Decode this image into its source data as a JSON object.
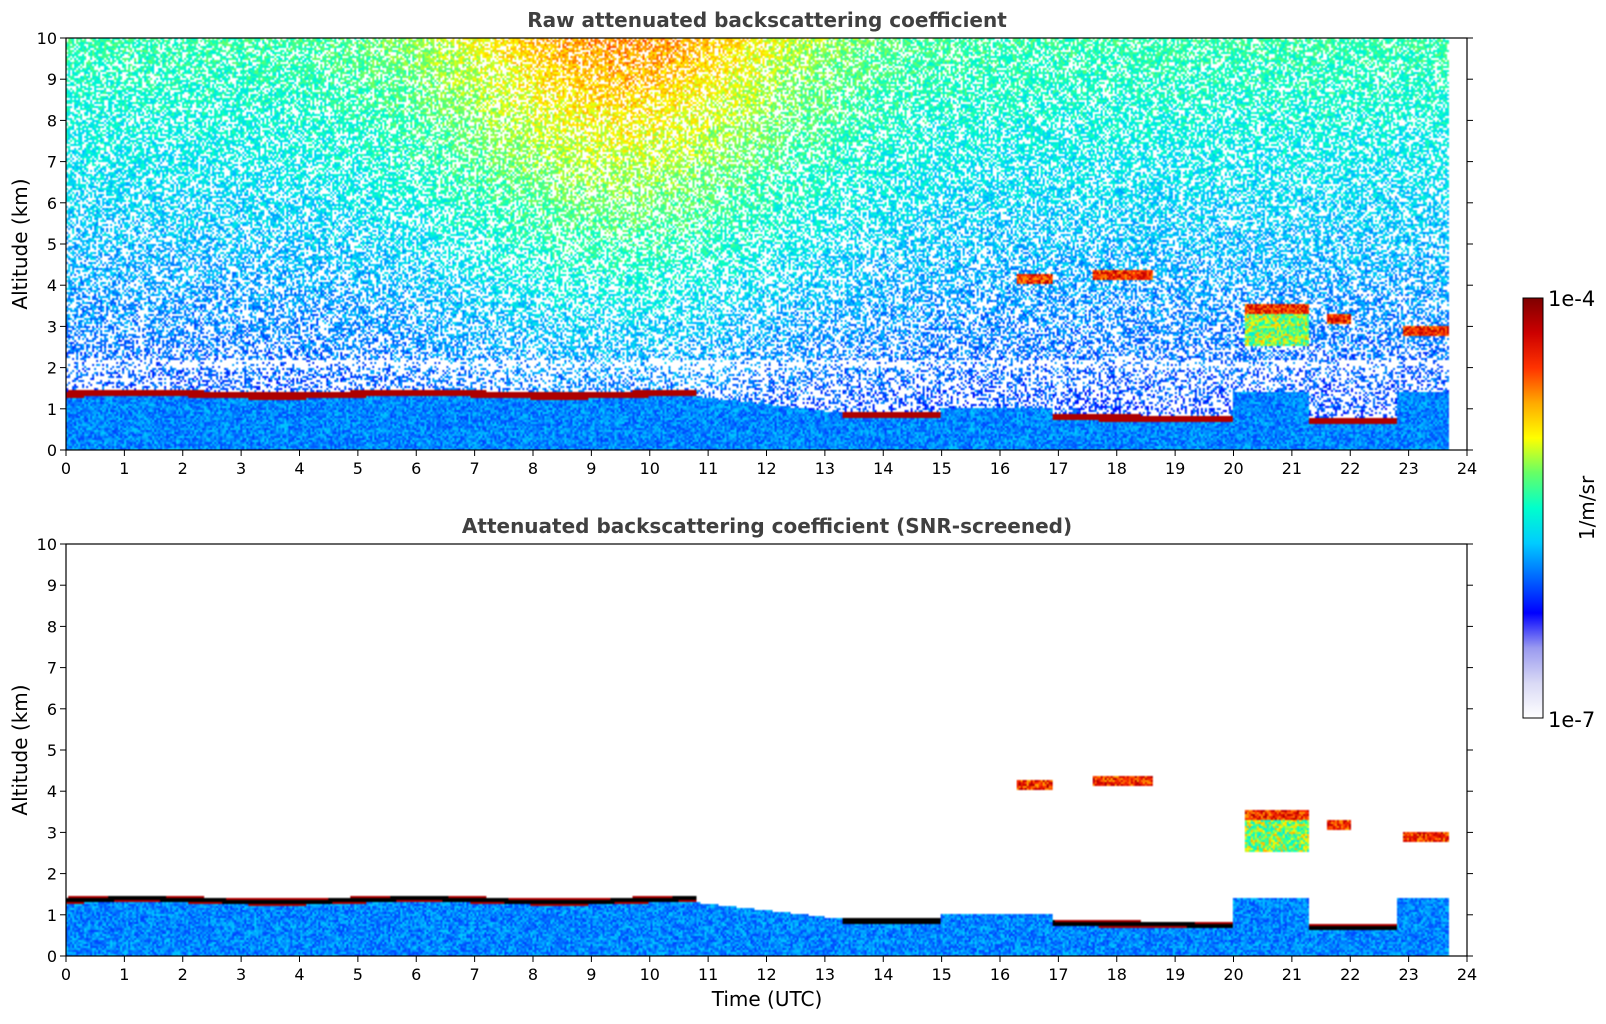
{
  "colormap": {
    "stops": [
      "#ffffff",
      "#d9d9f5",
      "#9a9af0",
      "#0000ff",
      "#0066ff",
      "#00ccff",
      "#00ffcc",
      "#66ff66",
      "#ffff00",
      "#ffaa00",
      "#ff3300",
      "#cc0000",
      "#7f0000"
    ]
  },
  "colorbar": {
    "label": "1/m/sr",
    "max_label": "1e-4",
    "min_label": "1e-7"
  },
  "chart_data": [
    {
      "type": "heatmap",
      "title": "Raw attenuated backscattering coefficient",
      "xlabel": "",
      "ylabel": "Altitude (km)",
      "xlim": [
        0,
        24
      ],
      "ylim": [
        0,
        10
      ],
      "xticks": [
        "0",
        "1",
        "2",
        "3",
        "4",
        "5",
        "6",
        "7",
        "8",
        "9",
        "10",
        "11",
        "12",
        "13",
        "14",
        "15",
        "16",
        "17",
        "18",
        "19",
        "20",
        "21",
        "22",
        "23",
        "24"
      ],
      "yticks": [
        "0",
        "1",
        "2",
        "3",
        "4",
        "5",
        "6",
        "7",
        "8",
        "9",
        "10"
      ],
      "color_scale": "log",
      "color_range": [
        1e-07,
        0.0001
      ],
      "data_end_hour": 23.7,
      "screened": false,
      "features": [
        {
          "name": "aerosol layer",
          "t_start": 0,
          "t_end": 10.8,
          "base_km": 0,
          "top_km": 1.35
        },
        {
          "name": "cloud",
          "t_start": 0,
          "t_end": 10.8,
          "altitude_km": 1.35
        },
        {
          "name": "cloud",
          "t_start": 13.3,
          "t_end": 15.0,
          "altitude_km": 0.85
        },
        {
          "name": "cloud",
          "t_start": 16.3,
          "t_end": 16.9,
          "altitude_km": 4.15
        },
        {
          "name": "cloud",
          "t_start": 17.6,
          "t_end": 18.6,
          "altitude_km": 4.25
        },
        {
          "name": "cloud",
          "t_start": 20.2,
          "t_end": 21.3,
          "altitude_km": 3.4
        },
        {
          "name": "cloud",
          "t_start": 21.6,
          "t_end": 22.0,
          "altitude_km": 3.2
        },
        {
          "name": "cloud",
          "t_start": 22.9,
          "t_end": 23.7,
          "altitude_km": 2.9
        },
        {
          "name": "cloud",
          "t_start": 16.9,
          "t_end": 20.0,
          "altitude_km": 0.8
        }
      ]
    },
    {
      "type": "heatmap",
      "title": "Attenuated backscattering coefficient (SNR-screened)",
      "xlabel": "Time (UTC)",
      "ylabel": "Altitude (km)",
      "xlim": [
        0,
        24
      ],
      "ylim": [
        0,
        10
      ],
      "xticks": [
        "0",
        "1",
        "2",
        "3",
        "4",
        "5",
        "6",
        "7",
        "8",
        "9",
        "10",
        "11",
        "12",
        "13",
        "14",
        "15",
        "16",
        "17",
        "18",
        "19",
        "20",
        "21",
        "22",
        "23",
        "24"
      ],
      "yticks": [
        "0",
        "1",
        "2",
        "3",
        "4",
        "5",
        "6",
        "7",
        "8",
        "9",
        "10"
      ],
      "color_scale": "log",
      "color_range": [
        1e-07,
        0.0001
      ],
      "data_end_hour": 23.7,
      "screened": true
    }
  ]
}
